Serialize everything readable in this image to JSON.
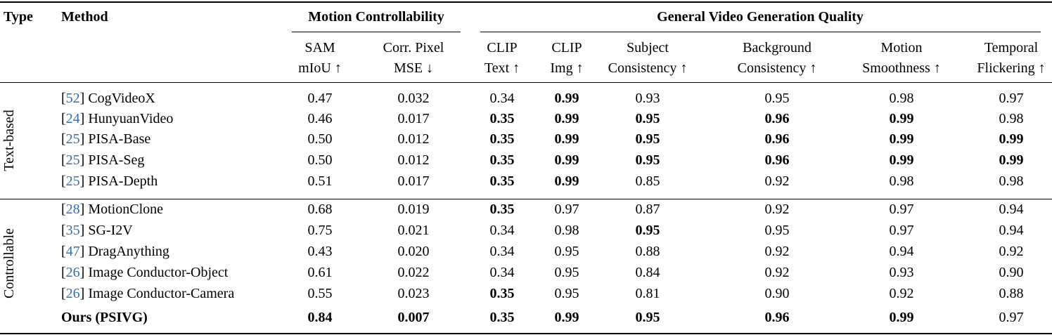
{
  "header": {
    "type": "Type",
    "method": "Method",
    "groups": [
      "Motion Controllability",
      "General Video Generation Quality"
    ],
    "columns": [
      [
        "SAM",
        "mIoU ↑"
      ],
      [
        "Corr. Pixel",
        "MSE ↓"
      ],
      [
        "CLIP",
        "Text ↑"
      ],
      [
        "CLIP",
        "Img ↑"
      ],
      [
        "Subject",
        "Consistency ↑"
      ],
      [
        "Background",
        "Consistency ↑"
      ],
      [
        "Motion",
        "Smoothness ↑"
      ],
      [
        "Temporal",
        "Flickering ↑"
      ]
    ]
  },
  "sections": [
    {
      "type": "Text-based",
      "rows": [
        {
          "cite": [
            "[",
            "52",
            "]"
          ],
          "method": "CogVideoX",
          "cells": [
            "0.47",
            "0.032",
            "0.34",
            "0.99",
            "0.93",
            "0.95",
            "0.98",
            "0.97"
          ],
          "bold": [
            3
          ]
        },
        {
          "cite": [
            "[",
            "24",
            "]"
          ],
          "method": "HunyuanVideo",
          "cells": [
            "0.46",
            "0.017",
            "0.35",
            "0.99",
            "0.95",
            "0.96",
            "0.99",
            "0.98"
          ],
          "bold": [
            2,
            3,
            4,
            5,
            6
          ]
        },
        {
          "cite": [
            "[",
            "25",
            "]"
          ],
          "method": "PISA-Base",
          "cells": [
            "0.50",
            "0.012",
            "0.35",
            "0.99",
            "0.95",
            "0.96",
            "0.99",
            "0.99"
          ],
          "bold": [
            2,
            3,
            4,
            5,
            6,
            7
          ]
        },
        {
          "cite": [
            "[",
            "25",
            "]"
          ],
          "method": "PISA-Seg",
          "cells": [
            "0.50",
            "0.012",
            "0.35",
            "0.99",
            "0.95",
            "0.96",
            "0.99",
            "0.99"
          ],
          "bold": [
            2,
            3,
            4,
            5,
            6,
            7
          ]
        },
        {
          "cite": [
            "[",
            "25",
            "]"
          ],
          "method": "PISA-Depth",
          "cells": [
            "0.51",
            "0.017",
            "0.35",
            "0.99",
            "0.85",
            "0.92",
            "0.98",
            "0.98"
          ],
          "bold": [
            2,
            3
          ]
        }
      ]
    },
    {
      "type": "Controllable",
      "rows": [
        {
          "cite": [
            "[",
            "28",
            "]"
          ],
          "method": "MotionClone",
          "cells": [
            "0.68",
            "0.019",
            "0.35",
            "0.97",
            "0.87",
            "0.92",
            "0.97",
            "0.94"
          ],
          "bold": [
            2
          ]
        },
        {
          "cite": [
            "[",
            "35",
            "]"
          ],
          "method": "SG-I2V",
          "cells": [
            "0.75",
            "0.021",
            "0.34",
            "0.98",
            "0.95",
            "0.95",
            "0.97",
            "0.94"
          ],
          "bold": [
            4
          ]
        },
        {
          "cite": [
            "[",
            "47",
            "]"
          ],
          "method": "DragAnything",
          "cells": [
            "0.43",
            "0.020",
            "0.34",
            "0.95",
            "0.88",
            "0.92",
            "0.94",
            "0.92"
          ]
        },
        {
          "cite": [
            "[",
            "26",
            "]"
          ],
          "method": "Image Conductor-Object",
          "cells": [
            "0.61",
            "0.022",
            "0.34",
            "0.95",
            "0.84",
            "0.92",
            "0.93",
            "0.90"
          ]
        },
        {
          "cite": [
            "[",
            "26",
            "]"
          ],
          "method": "Image Conductor-Camera",
          "cells": [
            "0.55",
            "0.023",
            "0.35",
            "0.95",
            "0.81",
            "0.90",
            "0.92",
            "0.88"
          ],
          "bold": [
            2
          ]
        }
      ]
    }
  ],
  "final": {
    "method": "Ours (PSIVG)",
    "cells": [
      "0.84",
      "0.007",
      "0.35",
      "0.99",
      "0.95",
      "0.96",
      "0.99",
      "0.97"
    ],
    "bold": [
      0,
      1,
      2,
      3,
      4,
      5,
      6
    ]
  }
}
